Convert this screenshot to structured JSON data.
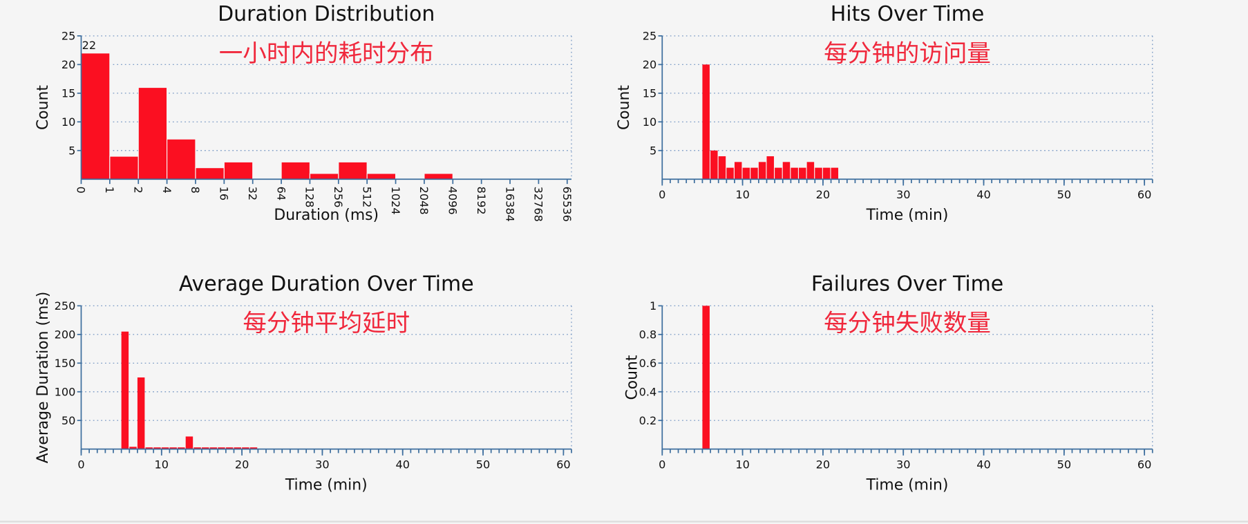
{
  "chart_data": [
    {
      "type": "histogram",
      "title": "Duration Distribution",
      "annotation": "一小时内的耗时分布",
      "xlabel": "Duration (ms)",
      "ylabel": "Count",
      "color": "#fb0f21",
      "bins": [
        0,
        1,
        2,
        4,
        8,
        16,
        32,
        64,
        128,
        256,
        512,
        1024,
        2048,
        4096,
        8192,
        16384,
        32768,
        65536
      ],
      "counts": [
        22,
        4,
        16,
        7,
        2,
        3,
        0,
        3,
        1,
        3,
        1,
        0,
        1,
        0,
        0,
        0,
        0
      ],
      "ylim": [
        0,
        25
      ],
      "yticks": [
        5,
        10,
        15,
        20,
        25
      ],
      "grid": true
    },
    {
      "type": "bar",
      "title": "Hits Over Time",
      "annotation": "每分钟的访问量",
      "xlabel": "Time (min)",
      "ylabel": "Count",
      "color": "#fb0f21",
      "x": [
        5,
        6,
        7,
        8,
        9,
        10,
        11,
        12,
        13,
        14,
        15,
        16,
        17,
        18,
        19,
        20,
        21
      ],
      "values": [
        20,
        5,
        4,
        2,
        3,
        2,
        2,
        3,
        4,
        2,
        3,
        2,
        2,
        3,
        2,
        2,
        2
      ],
      "xlim": [
        0,
        61
      ],
      "xticks": [
        0,
        10,
        20,
        30,
        40,
        50,
        60
      ],
      "ylim": [
        0,
        25
      ],
      "yticks": [
        5,
        10,
        15,
        20,
        25
      ],
      "grid": true
    },
    {
      "type": "bar",
      "title": "Average Duration Over Time",
      "annotation": "每分钟平均延时",
      "xlabel": "Time (min)",
      "ylabel": "Average Duration (ms)",
      "color": "#fb0f21",
      "x": [
        5,
        6,
        7,
        8,
        9,
        10,
        11,
        12,
        13,
        14,
        15,
        16,
        17,
        18,
        19,
        20,
        21
      ],
      "values": [
        205,
        4,
        125,
        3,
        3,
        3,
        3,
        3,
        22,
        3,
        3,
        3,
        3,
        3,
        3,
        3,
        3
      ],
      "xlim": [
        0,
        61
      ],
      "xticks": [
        0,
        10,
        20,
        30,
        40,
        50,
        60
      ],
      "ylim": [
        0,
        250
      ],
      "yticks": [
        50,
        100,
        150,
        200,
        250
      ],
      "grid": true
    },
    {
      "type": "bar",
      "title": "Failures Over Time",
      "annotation": "每分钟失败数量",
      "xlabel": "Time (min)",
      "ylabel": "Count",
      "color": "#fb0f21",
      "x": [
        5
      ],
      "values": [
        1
      ],
      "xlim": [
        0,
        61
      ],
      "xticks": [
        0,
        10,
        20,
        30,
        40,
        50,
        60
      ],
      "ylim": [
        0,
        1
      ],
      "yticks": [
        0.2,
        0.4,
        0.6,
        0.8,
        1
      ],
      "grid": true
    }
  ]
}
